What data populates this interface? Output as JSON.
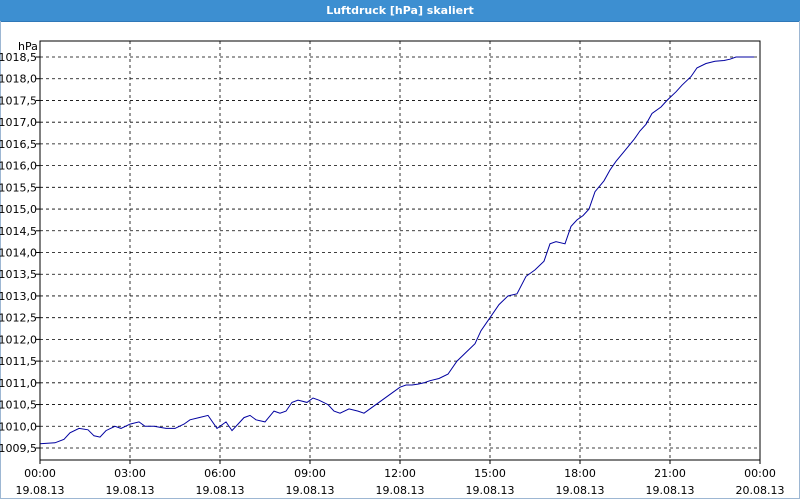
{
  "window": {
    "title": "Luftdruck [hPa] skaliert"
  },
  "chart_data": {
    "type": "line",
    "title": "Luftdruck [hPa] skaliert",
    "ylabel": "hPa",
    "xlabel": "",
    "ylim": [
      1009.5,
      1018.5
    ],
    "y_ticks": [
      "1009,5",
      "1010,0",
      "1010,5",
      "1011,0",
      "1011,5",
      "1012,0",
      "1012,5",
      "1013,0",
      "1013,5",
      "1014,0",
      "1014,5",
      "1015,0",
      "1015,5",
      "1016,0",
      "1016,5",
      "1017,0",
      "1017,5",
      "1018,0",
      "1018,5"
    ],
    "x_range_hours": [
      0,
      24
    ],
    "x_ticks": [
      {
        "time": "00:00",
        "date": "19.08.13"
      },
      {
        "time": "03:00",
        "date": "19.08.13"
      },
      {
        "time": "06:00",
        "date": "19.08.13"
      },
      {
        "time": "09:00",
        "date": "19.08.13"
      },
      {
        "time": "12:00",
        "date": "19.08.13"
      },
      {
        "time": "15:00",
        "date": "19.08.13"
      },
      {
        "time": "18:00",
        "date": "19.08.13"
      },
      {
        "time": "21:00",
        "date": "19.08.13"
      },
      {
        "time": "00:00",
        "date": "20.08.13"
      }
    ],
    "grid": true,
    "series_color": "#0000a0",
    "series": [
      {
        "x": [
          0,
          0.5,
          0.8,
          1.0,
          1.3,
          1.6,
          1.8,
          2.0,
          2.2,
          2.5,
          2.7,
          3.0,
          3.3,
          3.5,
          3.8,
          4.2,
          4.5,
          4.8,
          5.0,
          5.3,
          5.6,
          5.9,
          6.2,
          6.4,
          6.6,
          6.8,
          7.0,
          7.2,
          7.5,
          7.8,
          8.0,
          8.2,
          8.4,
          8.6,
          8.9,
          9.1,
          9.3,
          9.6,
          9.8,
          10.0,
          10.3,
          10.6,
          10.8,
          11.1,
          11.4,
          11.7,
          12.0,
          12.2,
          12.4,
          12.6,
          12.8,
          13.0,
          13.3,
          13.6,
          13.9,
          14.2,
          14.5,
          14.7,
          15.0,
          15.3,
          15.6,
          15.9,
          16.2,
          16.5,
          16.8,
          17.0,
          17.2,
          17.5,
          17.7,
          17.9,
          18.1,
          18.3,
          18.5,
          18.8,
          19.0,
          19.2,
          19.5,
          19.8,
          20.0,
          20.2,
          20.4,
          20.7,
          20.9,
          21.2,
          21.4,
          21.7,
          21.9,
          22.2,
          22.5,
          22.8,
          23.0,
          23.2,
          23.5,
          23.8
        ],
        "y": [
          1009.6,
          1009.62,
          1009.7,
          1009.85,
          1009.95,
          1009.92,
          1009.78,
          1009.75,
          1009.9,
          1010.0,
          1009.95,
          1010.05,
          1010.1,
          1010.0,
          1010.0,
          1009.95,
          1009.95,
          1010.05,
          1010.15,
          1010.2,
          1010.25,
          1009.95,
          1010.1,
          1009.9,
          1010.05,
          1010.2,
          1010.25,
          1010.15,
          1010.1,
          1010.35,
          1010.3,
          1010.35,
          1010.55,
          1010.6,
          1010.55,
          1010.65,
          1010.6,
          1010.5,
          1010.35,
          1010.3,
          1010.4,
          1010.35,
          1010.3,
          1010.45,
          1010.6,
          1010.75,
          1010.9,
          1010.95,
          1010.95,
          1010.97,
          1011.0,
          1011.05,
          1011.1,
          1011.2,
          1011.5,
          1011.7,
          1011.9,
          1012.2,
          1012.5,
          1012.8,
          1013.0,
          1013.05,
          1013.45,
          1013.6,
          1013.8,
          1014.2,
          1014.25,
          1014.2,
          1014.6,
          1014.75,
          1014.85,
          1015.0,
          1015.4,
          1015.65,
          1015.9,
          1016.1,
          1016.35,
          1016.6,
          1016.8,
          1016.95,
          1017.2,
          1017.35,
          1017.5,
          1017.7,
          1017.85,
          1018.05,
          1018.25,
          1018.35,
          1018.4,
          1018.42,
          1018.45,
          1018.5,
          1018.5,
          1018.5
        ]
      }
    ]
  }
}
